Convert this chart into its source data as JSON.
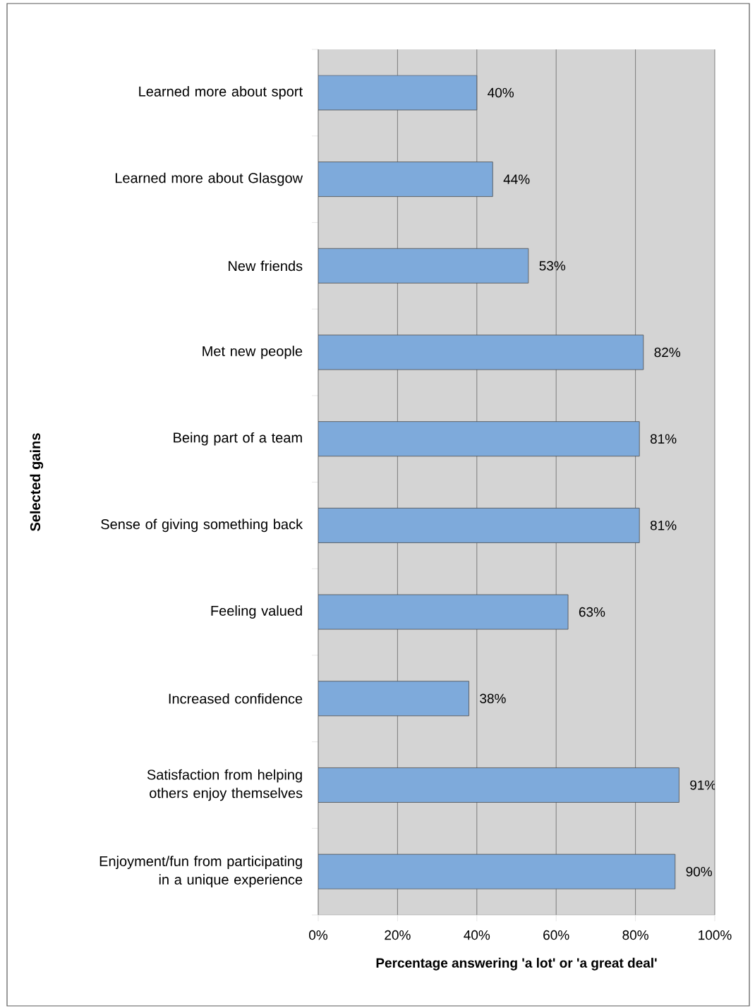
{
  "chart_data": {
    "type": "bar",
    "orientation": "horizontal",
    "xlabel": "Percentage answering 'a lot' or 'a great deal'",
    "ylabel": "Selected gains",
    "categories": [
      "Learned more about sport",
      "Learned more about Glasgow",
      "New friends",
      "Met new people",
      "Being part of a team",
      "Sense of giving something back",
      "Feeling valued",
      "Increased confidence",
      "Satisfaction from helping others enjoy themselves",
      "Enjoyment/fun from participating in a unique experience"
    ],
    "values": [
      40,
      44,
      53,
      82,
      81,
      81,
      63,
      38,
      91,
      90
    ],
    "value_labels": [
      "40%",
      "44%",
      "53%",
      "82%",
      "81%",
      "81%",
      "63%",
      "38%",
      "91%",
      "90%"
    ],
    "color": "#7eaadb",
    "xlim": [
      0,
      100
    ],
    "xticks": [
      {
        "value": 0,
        "label": "0%"
      },
      {
        "value": 20,
        "label": "20%"
      },
      {
        "value": 40,
        "label": "40%"
      },
      {
        "value": 60,
        "label": "60%"
      },
      {
        "value": 80,
        "label": "80%"
      },
      {
        "value": 100,
        "label": "100%"
      }
    ],
    "grid": "x"
  }
}
